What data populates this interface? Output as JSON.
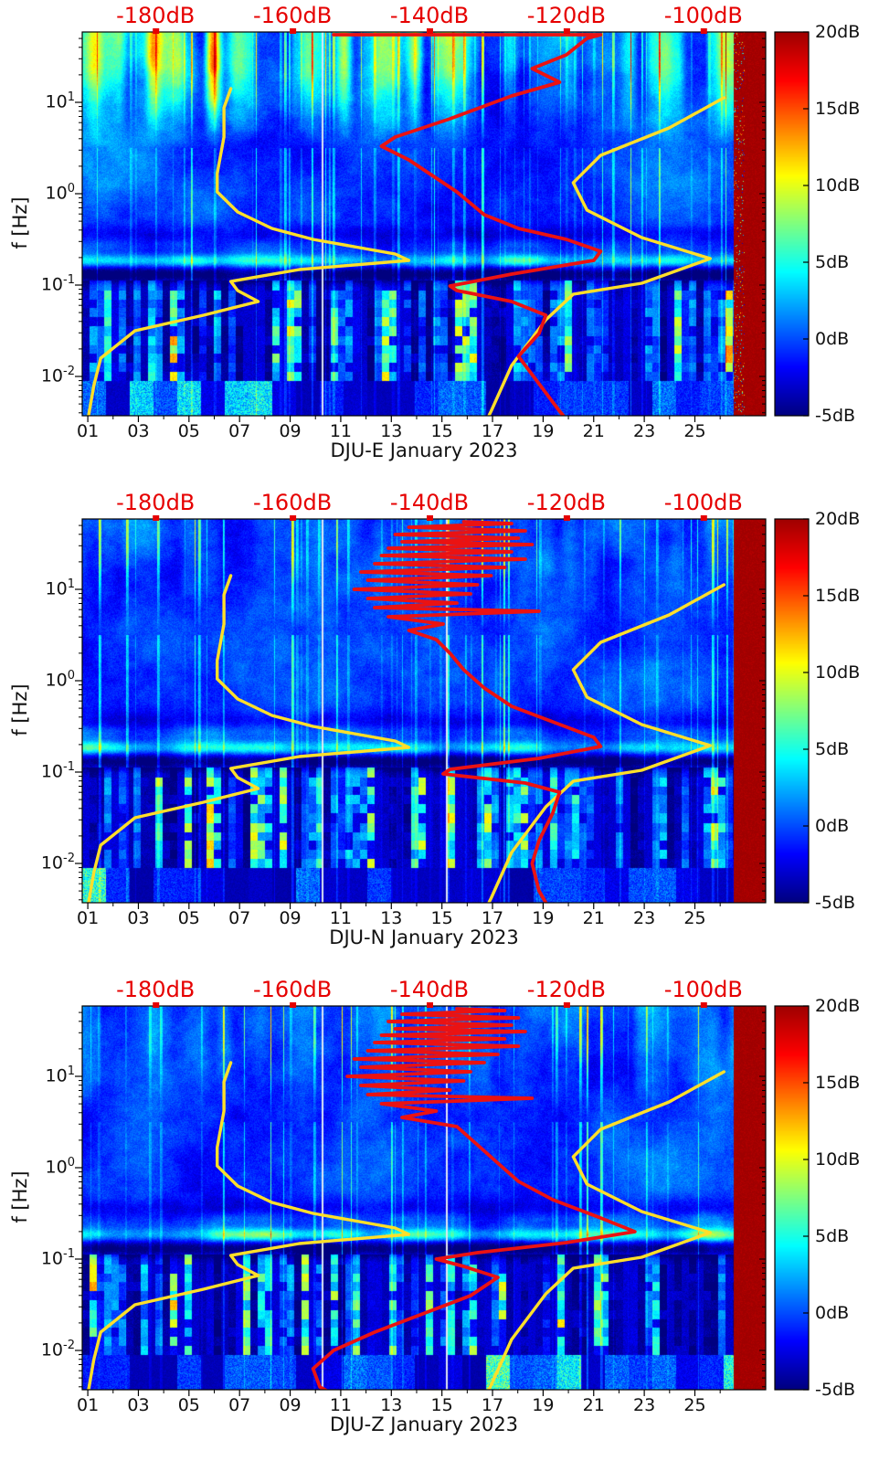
{
  "chart_data": {
    "type": "heatmap",
    "subtype": "psd-spectrogram-with-noise-models",
    "x_axis": {
      "tick_labels": [
        "01",
        "03",
        "05",
        "07",
        "09",
        "11",
        "13",
        "15",
        "17",
        "19",
        "21",
        "23",
        "25"
      ],
      "tick_days": [
        1,
        3,
        5,
        7,
        9,
        11,
        13,
        15,
        17,
        19,
        21,
        23,
        25
      ],
      "minor_days": [
        2,
        4,
        6,
        8,
        10,
        12,
        14,
        16,
        18,
        20,
        22,
        24,
        26
      ],
      "day_min": 0.78,
      "day_max": 27.8
    },
    "y_axis": {
      "label": "f [Hz]",
      "scale": "log",
      "tick_exponents": [
        1,
        0,
        -1,
        -2
      ],
      "min_exponent": -2.43,
      "max_exponent": 1.77
    },
    "top_axis": {
      "labels": [
        "-180dB",
        "-160dB",
        "-140dB",
        "-120dB",
        "-100dB"
      ],
      "values": [
        -180,
        -160,
        -140,
        -120,
        -100
      ],
      "db_min": -190.7,
      "db_max": -90.9,
      "color": "#e60000"
    },
    "colorbar": {
      "tick_labels": [
        "20dB",
        "15dB",
        "10dB",
        "5dB",
        "0dB",
        "-5dB"
      ],
      "tick_values": [
        20,
        15,
        10,
        5,
        0,
        -5
      ],
      "vmin": -5,
      "vmax": 20,
      "colormap": "jet"
    },
    "noise_models": {
      "color": "#ffdf2a",
      "nlnm": [
        [
          -190,
          -2.53
        ],
        [
          -189,
          -2.1
        ],
        [
          -188,
          -1.8
        ],
        [
          -183,
          -1.5
        ],
        [
          -173,
          -1.33
        ],
        [
          -165,
          -1.18
        ],
        [
          -168,
          -1.06
        ],
        [
          -169,
          -0.96
        ],
        [
          -159,
          -0.83
        ],
        [
          -143,
          -0.73
        ],
        [
          -145,
          -0.66
        ],
        [
          -157,
          -0.5
        ],
        [
          -163,
          -0.38
        ],
        [
          -168,
          -0.2
        ],
        [
          -171,
          0.02
        ],
        [
          -171,
          0.22
        ],
        [
          -170,
          0.62
        ],
        [
          -170,
          0.94
        ],
        [
          -169,
          1.15
        ]
      ],
      "nhnm": [
        [
          -97,
          1.05
        ],
        [
          -105,
          0.72
        ],
        [
          -115,
          0.42
        ],
        [
          -119,
          0.12
        ],
        [
          -117,
          -0.18
        ],
        [
          -109,
          -0.48
        ],
        [
          -99,
          -0.71
        ],
        [
          -109,
          -0.98
        ],
        [
          -119,
          -1.1
        ],
        [
          -123,
          -1.38
        ],
        [
          -128,
          -1.88
        ],
        [
          -131,
          -2.38
        ],
        [
          -132,
          -2.53
        ]
      ]
    },
    "psd_color": "#eb1212",
    "panels": [
      {
        "station": "DJU-E",
        "xlabel": "DJU-E January 2023",
        "psd": [
          [
            -154,
            1.74
          ],
          [
            -115,
            1.74
          ],
          [
            -117,
            1.7
          ],
          [
            -120,
            1.52
          ],
          [
            -125,
            1.37
          ],
          [
            -121,
            1.22
          ],
          [
            -128,
            1.07
          ],
          [
            -137,
            0.82
          ],
          [
            -145,
            0.62
          ],
          [
            -147,
            0.52
          ],
          [
            -143,
            0.37
          ],
          [
            -140,
            0.22
          ],
          [
            -136,
            0.02
          ],
          [
            -132,
            -0.23
          ],
          [
            -127,
            -0.38
          ],
          [
            -120,
            -0.5
          ],
          [
            -115,
            -0.63
          ],
          [
            -116,
            -0.73
          ],
          [
            -128,
            -0.88
          ],
          [
            -137,
            -1.01
          ],
          [
            -136,
            -1.06
          ],
          [
            -128,
            -1.18
          ],
          [
            -123,
            -1.33
          ],
          [
            -124,
            -1.53
          ],
          [
            -127,
            -1.78
          ],
          [
            -125,
            -1.98
          ],
          [
            -123,
            -2.18
          ],
          [
            -121,
            -2.38
          ],
          [
            -119,
            -2.56
          ]
        ],
        "spectrogram": {
          "seed": 101,
          "top_energy": 10,
          "top_profile": [
            1.2,
            1.35,
            1.2,
            1.0,
            1.15,
            0.4,
            0.3,
            0.85,
            1.5
          ],
          "micro": 5.5,
          "micro_profile": [
            0.8,
            1.0,
            1.4,
            0.9,
            1.0,
            1.2,
            0.8,
            1.2,
            1.7
          ],
          "streak_density": 0.085,
          "low_hot": 0.1,
          "low_hot_center": 0.45,
          "low_hot_boost": 0.8,
          "mid_bumps": [
            [
              0.05,
              0.35,
              0.06,
              0.55,
              2.6
            ],
            [
              0.86,
              0.15,
              0.07,
              0.6,
              2.4
            ],
            [
              0.3,
              -0.15,
              0.2,
              0.4,
              1.1
            ]
          ],
          "gap_cols": [
            0.35
          ],
          "red_from": 0.952,
          "red_noise": true
        }
      },
      {
        "station": "DJU-N",
        "xlabel": "DJU-N January 2023",
        "psd": [
          [
            -135,
            1.74
          ],
          [
            -128,
            1.72
          ],
          [
            -143,
            1.68
          ],
          [
            -126,
            1.64
          ],
          [
            -145,
            1.6
          ],
          [
            -127,
            1.56
          ],
          [
            -144,
            1.52
          ],
          [
            -125,
            1.49
          ],
          [
            -146,
            1.45
          ],
          [
            -128,
            1.41
          ],
          [
            -147,
            1.37
          ],
          [
            -126,
            1.33
          ],
          [
            -148,
            1.28
          ],
          [
            -129,
            1.24
          ],
          [
            -150,
            1.19
          ],
          [
            -131,
            1.15
          ],
          [
            -149,
            1.1
          ],
          [
            -133,
            1.05
          ],
          [
            -151,
            1.0
          ],
          [
            -134,
            0.95
          ],
          [
            -149,
            0.9
          ],
          [
            -136,
            0.85
          ],
          [
            -148,
            0.8
          ],
          [
            -124,
            0.76
          ],
          [
            -146,
            0.7
          ],
          [
            -138,
            0.62
          ],
          [
            -143,
            0.55
          ],
          [
            -139,
            0.45
          ],
          [
            -137,
            0.3
          ],
          [
            -135,
            0.12
          ],
          [
            -132,
            -0.08
          ],
          [
            -128,
            -0.28
          ],
          [
            -122,
            -0.45
          ],
          [
            -116,
            -0.62
          ],
          [
            -115,
            -0.72
          ],
          [
            -124,
            -0.85
          ],
          [
            -137,
            -0.97
          ],
          [
            -138,
            -1.02
          ],
          [
            -126,
            -1.12
          ],
          [
            -121,
            -1.22
          ],
          [
            -122,
            -1.45
          ],
          [
            -124,
            -1.75
          ],
          [
            -125,
            -2.0
          ],
          [
            -124,
            -2.3
          ],
          [
            -122,
            -2.56
          ]
        ],
        "spectrogram": {
          "seed": 202,
          "top_energy": 1.7,
          "top_profile": [
            0.9,
            1.0,
            0.95,
            1.0,
            0.9,
            0.85,
            0.9,
            1.0,
            1.1
          ],
          "micro": 4.6,
          "micro_profile": [
            1.2,
            0.8,
            1.0,
            0.9,
            1.0,
            1.0,
            0.8,
            1.0,
            1.6
          ],
          "streak_density": 0.075,
          "low_hot": 0.17,
          "low_hot_center": 0.17,
          "low_hot_boost": 1.6,
          "mid_bumps": [
            [
              0.86,
              0.0,
              0.08,
              0.6,
              2.2
            ],
            [
              0.5,
              0.25,
              0.3,
              0.5,
              0.8
            ]
          ],
          "gap_cols": [
            0.35,
            0.532
          ],
          "red_from": 0.952,
          "red_noise": false
        }
      },
      {
        "station": "DJU-Z",
        "xlabel": "DJU-Z January 2023",
        "psd": [
          [
            -136,
            1.74
          ],
          [
            -129,
            1.72
          ],
          [
            -144,
            1.68
          ],
          [
            -127,
            1.64
          ],
          [
            -146,
            1.6
          ],
          [
            -128,
            1.56
          ],
          [
            -145,
            1.52
          ],
          [
            -126,
            1.49
          ],
          [
            -147,
            1.45
          ],
          [
            -129,
            1.41
          ],
          [
            -148,
            1.37
          ],
          [
            -127,
            1.33
          ],
          [
            -149,
            1.28
          ],
          [
            -130,
            1.24
          ],
          [
            -151,
            1.19
          ],
          [
            -132,
            1.15
          ],
          [
            -150,
            1.1
          ],
          [
            -134,
            1.05
          ],
          [
            -152,
            1.0
          ],
          [
            -135,
            0.95
          ],
          [
            -150,
            0.9
          ],
          [
            -137,
            0.85
          ],
          [
            -149,
            0.8
          ],
          [
            -125,
            0.76
          ],
          [
            -147,
            0.7
          ],
          [
            -139,
            0.62
          ],
          [
            -144,
            0.55
          ],
          [
            -136,
            0.45
          ],
          [
            -133,
            0.25
          ],
          [
            -130,
            0.05
          ],
          [
            -127,
            -0.15
          ],
          [
            -122,
            -0.35
          ],
          [
            -115,
            -0.55
          ],
          [
            -110,
            -0.7
          ],
          [
            -120,
            -0.82
          ],
          [
            -133,
            -0.93
          ],
          [
            -139,
            -1.0
          ],
          [
            -135,
            -1.08
          ],
          [
            -130,
            -1.2
          ],
          [
            -134,
            -1.4
          ],
          [
            -141,
            -1.6
          ],
          [
            -148,
            -1.8
          ],
          [
            -154,
            -2.0
          ],
          [
            -157,
            -2.2
          ],
          [
            -156,
            -2.4
          ],
          [
            -152,
            -2.56
          ]
        ],
        "spectrogram": {
          "seed": 303,
          "top_energy": 2.3,
          "top_profile": [
            1.0,
            0.95,
            1.0,
            0.9,
            1.0,
            0.9,
            0.95,
            1.0,
            1.1
          ],
          "micro": 5.2,
          "micro_profile": [
            1.0,
            0.9,
            1.3,
            1.0,
            1.1,
            1.0,
            0.9,
            1.1,
            1.6
          ],
          "streak_density": 0.08,
          "low_hot": 0.15,
          "low_hot_center": 0.2,
          "low_hot_boost": 1.4,
          "mid_bumps": [
            [
              0.86,
              0.1,
              0.08,
              0.6,
              2.4
            ],
            [
              0.45,
              0.3,
              0.25,
              0.5,
              1.0
            ]
          ],
          "gap_cols": [
            0.35,
            0.532
          ],
          "red_from": 0.952,
          "red_noise": false
        }
      }
    ]
  }
}
